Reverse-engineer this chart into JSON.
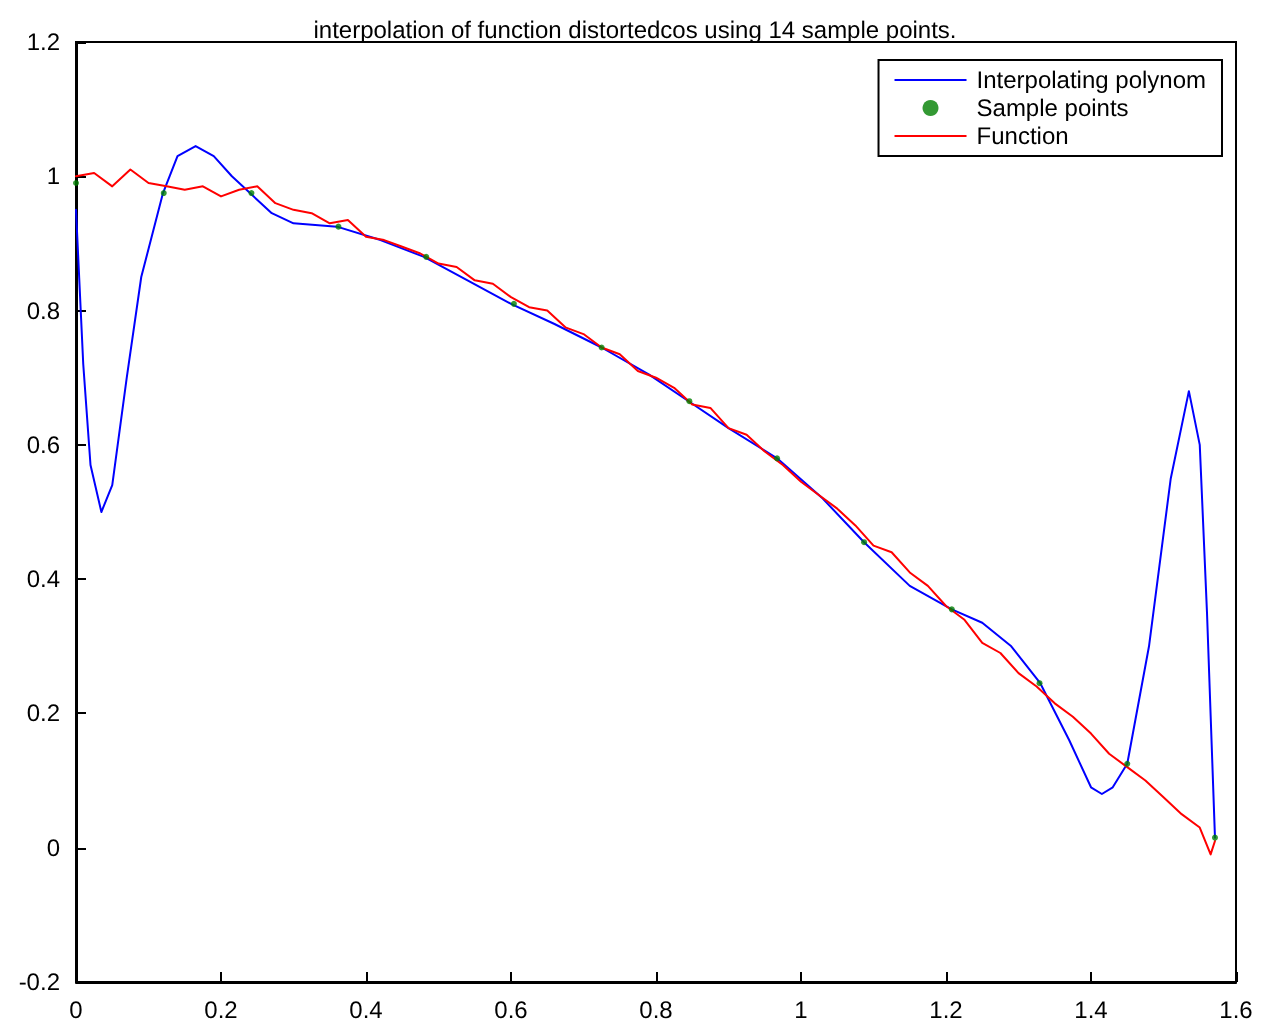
{
  "chart_data": {
    "type": "line",
    "title": "interpolation of function distortedcos using 14 sample points.",
    "xlim": [
      0,
      1.6
    ],
    "xticks": [
      0,
      0.2,
      0.4,
      0.6,
      0.8,
      1,
      1.2,
      1.4,
      1.6
    ],
    "ylim": [
      -0.2,
      1.2
    ],
    "yticks": [
      -0.2,
      0,
      0.2,
      0.4,
      0.6,
      0.8,
      1,
      1.2
    ],
    "grid": false,
    "legend": "top right",
    "series": [
      {
        "name": "Interpolating polynom",
        "type": "line",
        "color": "#0000ff",
        "line_style": "solid",
        "x": [
          0,
          0.01,
          0.02,
          0.035,
          0.05,
          0.07,
          0.09,
          0.12,
          0.14,
          0.165,
          0.19,
          0.215,
          0.24,
          0.27,
          0.3,
          0.36,
          0.42,
          0.48,
          0.54,
          0.6,
          0.66,
          0.725,
          0.79,
          0.845,
          0.9,
          0.967,
          1.03,
          1.087,
          1.15,
          1.208,
          1.25,
          1.29,
          1.33,
          1.37,
          1.4,
          1.415,
          1.43,
          1.45,
          1.48,
          1.51,
          1.535,
          1.55,
          1.56,
          1.571
        ],
        "values": [
          0.95,
          0.72,
          0.57,
          0.5,
          0.54,
          0.7,
          0.85,
          0.975,
          1.03,
          1.045,
          1.03,
          1.0,
          0.975,
          0.945,
          0.93,
          0.925,
          0.905,
          0.88,
          0.845,
          0.81,
          0.78,
          0.745,
          0.705,
          0.665,
          0.625,
          0.58,
          0.52,
          0.455,
          0.39,
          0.355,
          0.335,
          0.3,
          0.245,
          0.16,
          0.09,
          0.08,
          0.09,
          0.125,
          0.3,
          0.55,
          0.68,
          0.6,
          0.35,
          0.015
        ]
      },
      {
        "name": "Sample points",
        "type": "scatter",
        "color": "#008000",
        "marker": "circle",
        "x": [
          0,
          0.121,
          0.242,
          0.362,
          0.483,
          0.604,
          0.725,
          0.846,
          0.967,
          1.087,
          1.208,
          1.329,
          1.45,
          1.571
        ],
        "values": [
          0.99,
          0.975,
          0.975,
          0.925,
          0.88,
          0.81,
          0.745,
          0.665,
          0.58,
          0.455,
          0.355,
          0.245,
          0.125,
          0.015
        ]
      },
      {
        "name": "Function",
        "type": "line",
        "color": "#ff0000",
        "line_style": "solid",
        "x": [
          0,
          0.025,
          0.05,
          0.075,
          0.1,
          0.125,
          0.15,
          0.175,
          0.2,
          0.225,
          0.25,
          0.275,
          0.3,
          0.325,
          0.35,
          0.375,
          0.4,
          0.425,
          0.45,
          0.475,
          0.5,
          0.525,
          0.55,
          0.575,
          0.6,
          0.625,
          0.65,
          0.675,
          0.7,
          0.725,
          0.75,
          0.775,
          0.8,
          0.825,
          0.85,
          0.875,
          0.9,
          0.925,
          0.95,
          0.975,
          1.0,
          1.025,
          1.05,
          1.075,
          1.1,
          1.125,
          1.15,
          1.175,
          1.2,
          1.225,
          1.25,
          1.275,
          1.3,
          1.325,
          1.35,
          1.375,
          1.4,
          1.425,
          1.45,
          1.475,
          1.5,
          1.525,
          1.55,
          1.565,
          1.571
        ],
        "values": [
          1.0,
          1.005,
          0.985,
          1.01,
          0.99,
          0.985,
          0.98,
          0.985,
          0.97,
          0.98,
          0.985,
          0.96,
          0.95,
          0.945,
          0.93,
          0.935,
          0.91,
          0.905,
          0.895,
          0.885,
          0.87,
          0.865,
          0.845,
          0.84,
          0.82,
          0.805,
          0.8,
          0.775,
          0.765,
          0.745,
          0.735,
          0.71,
          0.7,
          0.685,
          0.66,
          0.655,
          0.625,
          0.615,
          0.59,
          0.57,
          0.545,
          0.525,
          0.505,
          0.48,
          0.45,
          0.44,
          0.41,
          0.39,
          0.36,
          0.34,
          0.305,
          0.29,
          0.26,
          0.24,
          0.215,
          0.195,
          0.17,
          0.14,
          0.12,
          0.1,
          0.075,
          0.05,
          0.03,
          -0.01,
          0.01
        ]
      }
    ]
  }
}
